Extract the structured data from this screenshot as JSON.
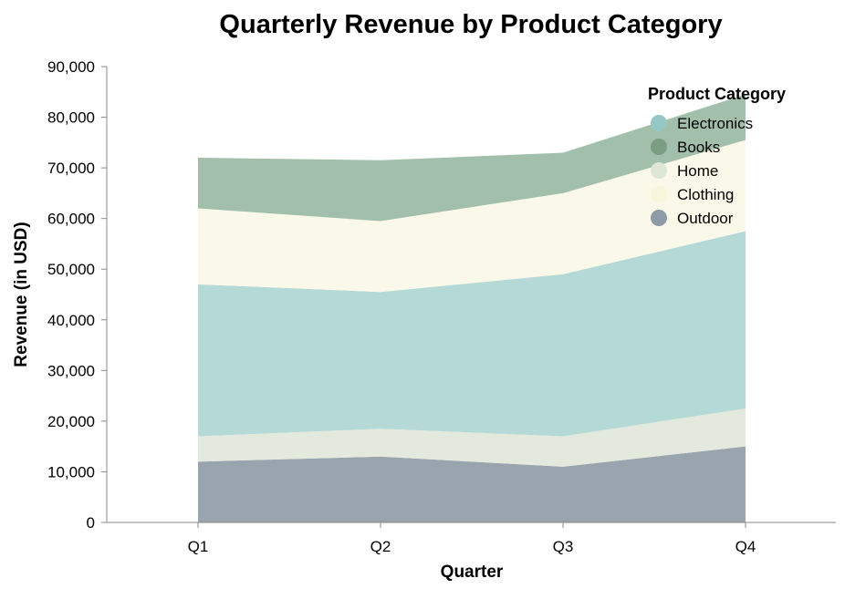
{
  "chart_data": {
    "type": "area",
    "stacked": true,
    "title": "Quarterly Revenue by Product Category",
    "xlabel": "Quarter",
    "ylabel": "Revenue (in USD)",
    "categories": [
      "Q1",
      "Q2",
      "Q3",
      "Q4"
    ],
    "ylim": [
      0,
      90000
    ],
    "yticks": [
      0,
      10000,
      20000,
      30000,
      40000,
      50000,
      60000,
      70000,
      80000,
      90000
    ],
    "ytick_labels": [
      "0",
      "10,000",
      "20,000",
      "30,000",
      "40,000",
      "50,000",
      "60,000",
      "70,000",
      "80,000",
      "90,000"
    ],
    "grid": false,
    "legend": {
      "title": "Product Category",
      "placement": "top-right",
      "order": [
        "Electronics",
        "Books",
        "Home",
        "Clothing",
        "Outdoor"
      ]
    },
    "series": [
      {
        "name": "Outdoor",
        "values": [
          12000,
          13000,
          11000,
          15000
        ],
        "color": "#9aa4ae"
      },
      {
        "name": "Home",
        "values": [
          5000,
          5500,
          6000,
          7500
        ],
        "color": "#e3e9dc"
      },
      {
        "name": "Electronics",
        "values": [
          30000,
          27000,
          32000,
          35000
        ],
        "color": "#b5d9d7"
      },
      {
        "name": "Clothing",
        "values": [
          15000,
          14000,
          16000,
          18000
        ],
        "color": "#faf8e8"
      },
      {
        "name": "Books",
        "values": [
          10000,
          12000,
          8000,
          9000
        ],
        "color": "#a1bfaa"
      }
    ]
  }
}
